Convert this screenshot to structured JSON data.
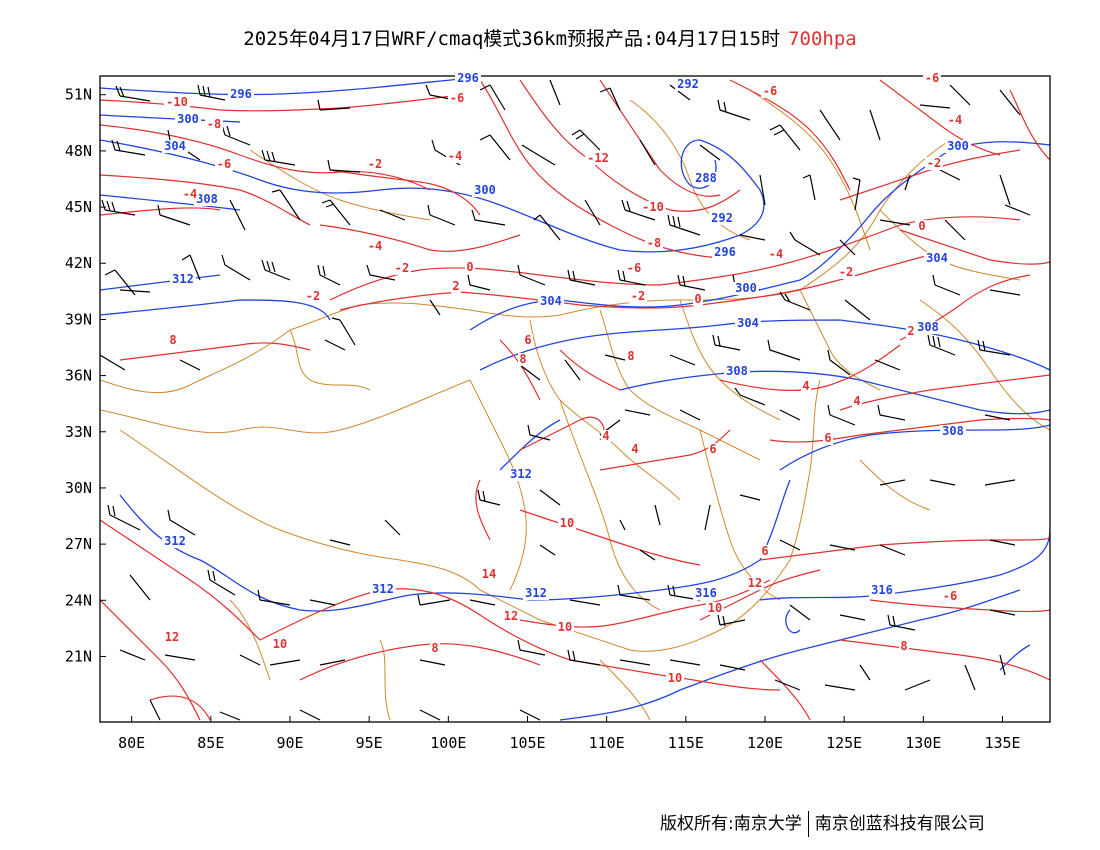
{
  "header": {
    "title": "2025年04月17日WRF/cmaq模式36km预报产品:04月17日15时",
    "level": "700hpa"
  },
  "colors": {
    "height_contour": "#2244dd",
    "temp_contour": "#e03030",
    "border": "#d08830",
    "barb": "#000000",
    "level_text": "#e03030"
  },
  "chart_data": {
    "type": "map",
    "lon_range": [
      78,
      138
    ],
    "lat_range": [
      17.5,
      52
    ],
    "x_ticks": [
      "80E",
      "85E",
      "90E",
      "95E",
      "100E",
      "105E",
      "110E",
      "115E",
      "120E",
      "125E",
      "130E",
      "135E"
    ],
    "y_ticks": [
      "51N",
      "48N",
      "45N",
      "42N",
      "39N",
      "36N",
      "33N",
      "30N",
      "27N",
      "24N",
      "21N"
    ],
    "height_labels": [
      "296",
      "296",
      "300",
      "304",
      "308",
      "312",
      "300",
      "292",
      "288",
      "292",
      "296",
      "300",
      "304",
      "300",
      "304",
      "304",
      "308",
      "308",
      "312",
      "308",
      "312",
      "312",
      "312",
      "316",
      "316"
    ],
    "temp_labels": [
      "-10",
      "-8",
      "-6",
      "-4",
      "-2",
      "-6",
      "-4",
      "-2",
      "-4",
      "-2",
      "0",
      "2",
      "-6",
      "-12",
      "-10",
      "-8",
      "-6",
      "-2",
      "0",
      "-6",
      "-4",
      "-2",
      "2",
      "-4",
      "-2",
      "0",
      "2",
      "4",
      "4",
      "6",
      "8",
      "8",
      "4",
      "6",
      "6",
      "8",
      "10",
      "14",
      "12",
      "10",
      "12",
      "10",
      "8",
      "10",
      "12",
      "10",
      "-6",
      "8",
      "6",
      "4"
    ]
  },
  "footer": {
    "copyright": "版权所有:南京大学",
    "company": "南京创蓝科技有限公司"
  }
}
